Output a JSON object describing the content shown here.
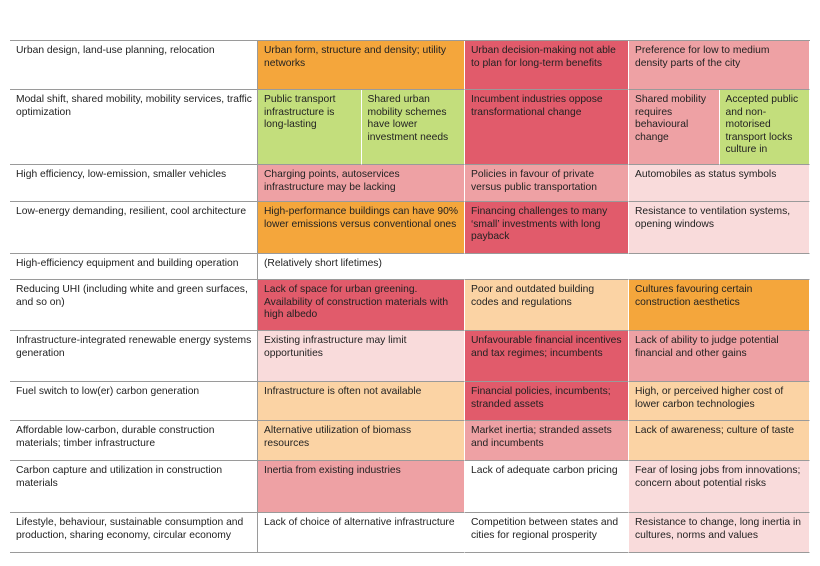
{
  "table": {
    "rows": [
      [
        "Urban design, land-use planning, relocation",
        "Urban form, structure and density; utility networks",
        "Urban decision-making not able to plan for long-term benefits",
        "Preference for low to medium density parts of the city"
      ],
      [
        "Modal shift, shared mobility, mobility services, traffic optimization",
        [
          "Public transport infrastructure is long-lasting",
          "Shared urban mobility schemes have lower investment needs"
        ],
        "Incumbent industries oppose transformational change",
        [
          "Shared mobility requires behavioural change",
          "Accepted public and non-motorised transport locks culture in"
        ]
      ],
      [
        "High efficiency, low-emission, smaller vehicles",
        "Charging points, autoservices infrastructure may be lacking",
        "Policies in favour of private versus public transportation",
        "Automobiles as status symbols"
      ],
      [
        "Low-energy demanding, resilient, cool architecture",
        "High-performance buildings can have 90% lower emissions versus conventional ones",
        "Financing challenges to many ‘small’ investments with long payback",
        "Resistance to ventilation systems, opening windows"
      ],
      [
        "High-efficiency equipment and building operation",
        "(Relatively short lifetimes)",
        "",
        ""
      ],
      [
        "Reducing UHI (including white and green surfaces, and so on)",
        "Lack of space for urban greening. Availability of construction materials with high albedo",
        "Poor and outdated building codes and regulations",
        "Cultures favouring certain construction aesthetics"
      ],
      [
        "Infrastructure-integrated renewable energy systems generation",
        "Existing infrastructure may limit opportunities",
        "Unfavourable financial incentives and tax regimes; incumbents",
        "Lack of ability to judge potential financial and other gains"
      ],
      [
        "Fuel switch to low(er) carbon generation",
        "Infrastructure is often not available",
        "Financial policies, incumbents; stranded assets",
        "High, or perceived higher cost of lower carbon technologies"
      ],
      [
        "Affordable low-carbon, durable construction materials; timber infrastructure",
        "Alternative utilization of biomass resources",
        "Market inertia; stranded assets and incumbents",
        "Lack of awareness; culture of taste"
      ],
      [
        "Carbon capture and utilization in construction materials",
        "Inertia from existing industries",
        "Lack of adequate carbon pricing",
        "Fear of losing jobs from innovations; concern about potential risks"
      ],
      [
        "Lifestyle, behaviour, sustainable consumption and production, sharing economy, circular economy",
        "Lack of choice of alternative infrastructure",
        "Competition between states and cities for regional prosperity",
        "Resistance to change, long inertia in cultures, norms and values"
      ]
    ]
  }
}
